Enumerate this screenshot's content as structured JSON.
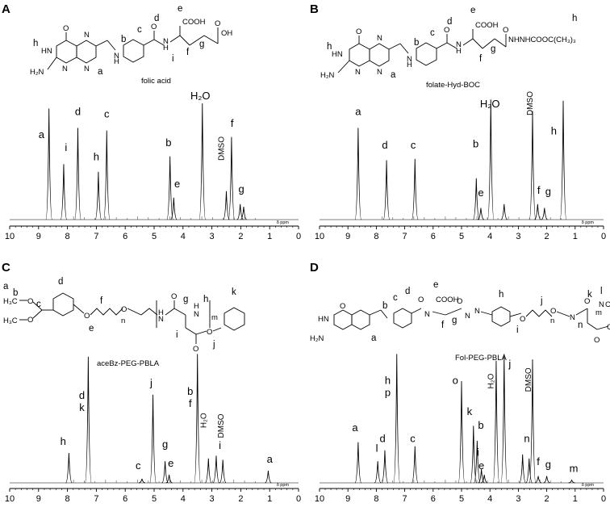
{
  "chart_data": [
    {
      "type": "line",
      "panel": "A",
      "compound": "folic acid",
      "xlabel": "δ ppm",
      "xlim": [
        10,
        0
      ],
      "xticks": [
        "10",
        "9",
        "8",
        "7",
        "6",
        "5",
        "4",
        "3",
        "2",
        "1",
        "0"
      ],
      "peaks": [
        {
          "ppm": 8.64,
          "height": 0.86,
          "label": "a",
          "lx": 8.9,
          "ly": 0.63
        },
        {
          "ppm": 8.13,
          "height": 0.43,
          "label": "i",
          "lx": 8.05,
          "ly": 0.53
        },
        {
          "ppm": 7.64,
          "height": 0.71,
          "label": "d",
          "lx": 7.64,
          "ly": 0.81
        },
        {
          "ppm": 6.93,
          "height": 0.37,
          "label": "h",
          "lx": 7.0,
          "ly": 0.46
        },
        {
          "ppm": 6.64,
          "height": 0.69,
          "label": "c",
          "lx": 6.64,
          "ly": 0.79
        },
        {
          "ppm": 4.45,
          "height": 0.49,
          "label": "b",
          "lx": 4.5,
          "ly": 0.57
        },
        {
          "ppm": 4.32,
          "height": 0.17,
          "label": "e",
          "lx": 4.2,
          "ly": 0.25
        },
        {
          "ppm": 3.33,
          "height": 0.9,
          "label": "H₂O",
          "lx": 3.4,
          "ly": 0.93
        },
        {
          "ppm": 2.5,
          "height": 0.22,
          "label": "",
          "lx": 0,
          "ly": 0
        },
        {
          "ppm": 2.32,
          "height": 0.64,
          "label": "f",
          "lx": 2.3,
          "ly": 0.72
        },
        {
          "ppm": 2.02,
          "height": 0.12,
          "label": "g",
          "lx": 1.98,
          "ly": 0.21
        },
        {
          "ppm": 1.9,
          "height": 0.1,
          "label": "",
          "lx": 0,
          "ly": 0
        }
      ],
      "annotations": [
        {
          "text": "DMSO",
          "ppm": 2.58,
          "y": 0.55
        }
      ]
    },
    {
      "type": "line",
      "panel": "B",
      "compound": "folate-Hyd-BOC",
      "xlabel": "δ ppm",
      "xlim": [
        10,
        0
      ],
      "xticks": [
        "10",
        "9",
        "8",
        "7",
        "6",
        "5",
        "4",
        "3",
        "2",
        "1",
        "0"
      ],
      "peaks": [
        {
          "ppm": 8.64,
          "height": 0.71,
          "label": "a",
          "lx": 8.64,
          "ly": 0.81
        },
        {
          "ppm": 7.64,
          "height": 0.46,
          "label": "d",
          "lx": 7.7,
          "ly": 0.55
        },
        {
          "ppm": 6.64,
          "height": 0.47,
          "label": "c",
          "lx": 6.7,
          "ly": 0.55
        },
        {
          "ppm": 4.48,
          "height": 0.32,
          "label": "b",
          "lx": 4.5,
          "ly": 0.56
        },
        {
          "ppm": 4.32,
          "height": 0.09,
          "label": "e",
          "lx": 4.32,
          "ly": 0.18
        },
        {
          "ppm": 3.97,
          "height": 0.93,
          "label": "H₂O",
          "lx": 4.0,
          "ly": 0.87
        },
        {
          "ppm": 3.5,
          "height": 0.12,
          "label": "",
          "lx": 0,
          "ly": 0
        },
        {
          "ppm": 2.5,
          "height": 0.84,
          "label": "",
          "lx": 0,
          "ly": 0
        },
        {
          "ppm": 2.32,
          "height": 0.12,
          "label": "f",
          "lx": 2.28,
          "ly": 0.2
        },
        {
          "ppm": 2.08,
          "height": 0.09,
          "label": "g",
          "lx": 1.95,
          "ly": 0.19
        },
        {
          "ppm": 1.42,
          "height": 0.92,
          "label": "h",
          "lx": 1.75,
          "ly": 0.66
        }
      ],
      "annotations": [
        {
          "text": "DMSO",
          "ppm": 2.5,
          "y": 0.9
        }
      ]
    },
    {
      "type": "line",
      "panel": "C",
      "compound": "aceBz-PEG-PBLA",
      "xlabel": "δ ppm",
      "xlim": [
        10,
        0
      ],
      "xticks": [
        "10",
        "9",
        "8",
        "7",
        "6",
        "5",
        "4",
        "3",
        "2",
        "1",
        "0"
      ],
      "peaks": [
        {
          "ppm": 7.95,
          "height": 0.22,
          "label": "h",
          "lx": 8.15,
          "ly": 0.28
        },
        {
          "ppm": 7.28,
          "height": 0.93,
          "label": "d",
          "lx": 7.5,
          "ly": 0.62,
          "label2": "k",
          "ly2": 0.53
        },
        {
          "ppm": 5.42,
          "height": 0.03,
          "label": "c",
          "lx": 5.55,
          "ly": 0.1
        },
        {
          "ppm": 5.04,
          "height": 0.65,
          "label": "j",
          "lx": 5.1,
          "ly": 0.71
        },
        {
          "ppm": 4.62,
          "height": 0.16,
          "label": "g",
          "lx": 4.62,
          "ly": 0.26
        },
        {
          "ppm": 4.48,
          "height": 0.06,
          "label": "e",
          "lx": 4.42,
          "ly": 0.12
        },
        {
          "ppm": 3.5,
          "height": 0.95,
          "label": "b",
          "lx": 3.75,
          "ly": 0.65,
          "label2": "f",
          "ly2": 0.56
        },
        {
          "ppm": 3.12,
          "height": 0.18,
          "label": "",
          "lx": 0,
          "ly": 0
        },
        {
          "ppm": 2.85,
          "height": 0.2,
          "label": "i",
          "lx": 2.72,
          "ly": 0.25
        },
        {
          "ppm": 2.62,
          "height": 0.17,
          "label": "",
          "lx": 0,
          "ly": 0
        },
        {
          "ppm": 1.05,
          "height": 0.09,
          "label": "a",
          "lx": 1.0,
          "ly": 0.15
        }
      ],
      "annotations": [
        {
          "text": "H₂O",
          "ppm": 3.2,
          "y": 0.46
        },
        {
          "text": "DMSO",
          "ppm": 2.6,
          "y": 0.42
        }
      ]
    },
    {
      "type": "line",
      "panel": "D",
      "compound": "Fol-PEG-PBLA",
      "xlabel": "δ ppm",
      "xlim": [
        10,
        0
      ],
      "xticks": [
        "10",
        "9",
        "8",
        "7",
        "6",
        "5",
        "4",
        "3",
        "2",
        "1",
        "0"
      ],
      "peaks": [
        {
          "ppm": 8.64,
          "height": 0.3,
          "label": "a",
          "lx": 8.75,
          "ly": 0.38
        },
        {
          "ppm": 7.95,
          "height": 0.16,
          "label": "l",
          "lx": 7.98,
          "ly": 0.23
        },
        {
          "ppm": 7.7,
          "height": 0.24,
          "label": "d",
          "lx": 7.78,
          "ly": 0.3
        },
        {
          "ppm": 7.28,
          "height": 0.95,
          "label": "h",
          "lx": 7.6,
          "ly": 0.73,
          "label2": "p",
          "ly2": 0.64
        },
        {
          "ppm": 6.64,
          "height": 0.27,
          "label": "c",
          "lx": 6.72,
          "ly": 0.3
        },
        {
          "ppm": 5.0,
          "height": 0.75,
          "label": "o",
          "lx": 5.22,
          "ly": 0.73
        },
        {
          "ppm": 4.58,
          "height": 0.42,
          "label": "k",
          "lx": 4.72,
          "ly": 0.5
        },
        {
          "ppm": 4.45,
          "height": 0.31,
          "label": "b",
          "lx": 4.32,
          "ly": 0.4
        },
        {
          "ppm": 4.3,
          "height": 0.1,
          "label": "i",
          "lx": 4.42,
          "ly": 0.2
        },
        {
          "ppm": 4.2,
          "height": 0.06,
          "label": "e",
          "lx": 4.3,
          "ly": 0.1
        },
        {
          "ppm": 3.78,
          "height": 0.9,
          "label": "",
          "lx": 0,
          "ly": 0
        },
        {
          "ppm": 3.5,
          "height": 0.95,
          "label": "j",
          "lx": 3.3,
          "ly": 0.85
        },
        {
          "ppm": 2.85,
          "height": 0.21,
          "label": "n",
          "lx": 2.7,
          "ly": 0.3
        },
        {
          "ppm": 2.62,
          "height": 0.18,
          "label": "",
          "lx": 0,
          "ly": 0
        },
        {
          "ppm": 2.5,
          "height": 0.91,
          "label": "",
          "lx": 0,
          "ly": 0
        },
        {
          "ppm": 2.3,
          "height": 0.05,
          "label": "f",
          "lx": 2.3,
          "ly": 0.13
        },
        {
          "ppm": 2.0,
          "height": 0.05,
          "label": "g",
          "lx": 1.95,
          "ly": 0.11
        },
        {
          "ppm": 1.12,
          "height": 0.02,
          "label": "m",
          "lx": 1.05,
          "ly": 0.08
        }
      ],
      "annotations": [
        {
          "text": "H₂O",
          "ppm": 3.88,
          "y": 0.75
        },
        {
          "text": "DMSO",
          "ppm": 2.55,
          "y": 0.76
        }
      ]
    }
  ]
}
